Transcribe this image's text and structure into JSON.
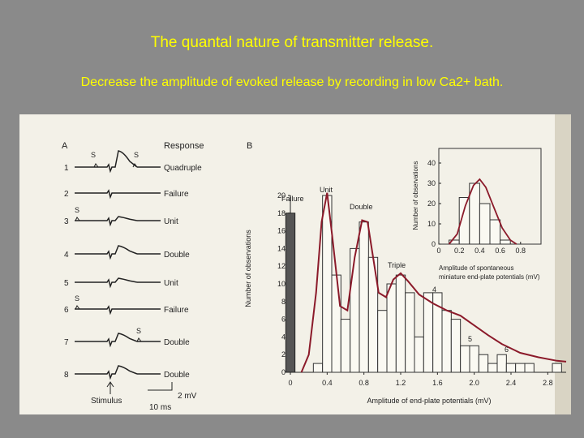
{
  "slide": {
    "title": "The quantal nature of transmitter release.",
    "subtitle": "Decrease the amplitude of evoked release by recording in low Ca2+ bath."
  },
  "panel_a": {
    "label": "A",
    "header": "Response",
    "traces": [
      {
        "n": "1",
        "response": "Quadruple",
        "s_marks": [
          "S",
          "S"
        ],
        "amp": 4
      },
      {
        "n": "2",
        "response": "Failure",
        "s_marks": [],
        "amp": 0
      },
      {
        "n": "3",
        "response": "Unit",
        "s_marks": [
          "S"
        ],
        "amp": 1
      },
      {
        "n": "4",
        "response": "Double",
        "s_marks": [],
        "amp": 2
      },
      {
        "n": "5",
        "response": "Unit",
        "s_marks": [],
        "amp": 1
      },
      {
        "n": "6",
        "response": "Failure",
        "s_marks": [
          "S"
        ],
        "amp": 0
      },
      {
        "n": "7",
        "response": "Double",
        "s_marks": [
          "S"
        ],
        "amp": 2
      },
      {
        "n": "8",
        "response": "Double",
        "s_marks": [],
        "amp": 2
      }
    ],
    "stimulus_label": "Stimulus",
    "scale_mv": "2 mV",
    "scale_ms": "10 ms"
  },
  "chart_data": [
    {
      "type": "bar",
      "title": "B",
      "xlabel": "Amplitude of end-plate potentials (mV)",
      "ylabel": "Number of observations",
      "xlim": [
        0,
        3.0
      ],
      "ylim": [
        0,
        20
      ],
      "xticks": [
        "0",
        "0.4",
        "0.8",
        "1.2",
        "1.6",
        "2.0",
        "2.4",
        "2.8"
      ],
      "yticks": [
        "0",
        "2",
        "4",
        "6",
        "8",
        "10",
        "12",
        "14",
        "16",
        "18",
        "20"
      ],
      "failure_bar": {
        "label": "Failure",
        "value": 18
      },
      "bin_width": 0.1,
      "bins": [
        {
          "x": 0.3,
          "y": 1
        },
        {
          "x": 0.4,
          "y": 20
        },
        {
          "x": 0.5,
          "y": 11
        },
        {
          "x": 0.6,
          "y": 6
        },
        {
          "x": 0.7,
          "y": 14
        },
        {
          "x": 0.8,
          "y": 17
        },
        {
          "x": 0.9,
          "y": 13
        },
        {
          "x": 1.0,
          "y": 7
        },
        {
          "x": 1.1,
          "y": 10
        },
        {
          "x": 1.2,
          "y": 11
        },
        {
          "x": 1.3,
          "y": 9
        },
        {
          "x": 1.4,
          "y": 4
        },
        {
          "x": 1.5,
          "y": 9
        },
        {
          "x": 1.6,
          "y": 9
        },
        {
          "x": 1.7,
          "y": 7
        },
        {
          "x": 1.8,
          "y": 6
        },
        {
          "x": 1.9,
          "y": 3
        },
        {
          "x": 2.0,
          "y": 3
        },
        {
          "x": 2.1,
          "y": 2
        },
        {
          "x": 2.2,
          "y": 1
        },
        {
          "x": 2.3,
          "y": 2
        },
        {
          "x": 2.4,
          "y": 1
        },
        {
          "x": 2.5,
          "y": 1
        },
        {
          "x": 2.6,
          "y": 1
        },
        {
          "x": 2.7,
          "y": 0
        },
        {
          "x": 2.8,
          "y": 0
        },
        {
          "x": 2.9,
          "y": 1
        }
      ],
      "fit_curve": [
        [
          0.12,
          0
        ],
        [
          0.2,
          2
        ],
        [
          0.28,
          9
        ],
        [
          0.34,
          17
        ],
        [
          0.4,
          20.3
        ],
        [
          0.46,
          15
        ],
        [
          0.54,
          7.5
        ],
        [
          0.62,
          7
        ],
        [
          0.7,
          13
        ],
        [
          0.78,
          17.2
        ],
        [
          0.84,
          17
        ],
        [
          0.9,
          13
        ],
        [
          0.96,
          9
        ],
        [
          1.04,
          8.5
        ],
        [
          1.12,
          10.5
        ],
        [
          1.2,
          11.2
        ],
        [
          1.28,
          10.3
        ],
        [
          1.4,
          8.8
        ],
        [
          1.55,
          7.8
        ],
        [
          1.7,
          7
        ],
        [
          1.85,
          6.4
        ],
        [
          2.0,
          5.3
        ],
        [
          2.15,
          4.2
        ],
        [
          2.3,
          3.2
        ],
        [
          2.5,
          2.2
        ],
        [
          2.7,
          1.7
        ],
        [
          2.9,
          1.3
        ],
        [
          3.0,
          1.2
        ]
      ],
      "annotations": [
        "Unit",
        "Double",
        "Triple",
        "4",
        "5",
        "6"
      ],
      "inset": {
        "type": "bar",
        "xlabel": "Amplitude of spontaneous miniature end-plate potentials (mV)",
        "ylabel": "Number of observations",
        "xlim": [
          0,
          1.0
        ],
        "ylim": [
          0,
          40
        ],
        "xticks": [
          "0",
          "0.2",
          "0.4",
          "0.6",
          "0.8"
        ],
        "yticks": [
          "0",
          "10",
          "20",
          "30",
          "40"
        ],
        "bin_width": 0.1,
        "bins": [
          {
            "x": 0.15,
            "y": 2
          },
          {
            "x": 0.25,
            "y": 23
          },
          {
            "x": 0.35,
            "y": 30
          },
          {
            "x": 0.45,
            "y": 20
          },
          {
            "x": 0.55,
            "y": 12
          },
          {
            "x": 0.65,
            "y": 2
          }
        ],
        "fit_curve": [
          [
            0.1,
            0
          ],
          [
            0.18,
            5
          ],
          [
            0.26,
            19
          ],
          [
            0.34,
            29
          ],
          [
            0.4,
            32
          ],
          [
            0.46,
            28
          ],
          [
            0.54,
            18
          ],
          [
            0.62,
            8
          ],
          [
            0.7,
            2
          ],
          [
            0.76,
            0
          ]
        ]
      }
    }
  ],
  "colors": {
    "background": "#8a8a8a",
    "title_text": "#ffff00",
    "paper": "#f3f1e8",
    "curve": "#8b1a2a",
    "failure_bar": "#555555"
  }
}
